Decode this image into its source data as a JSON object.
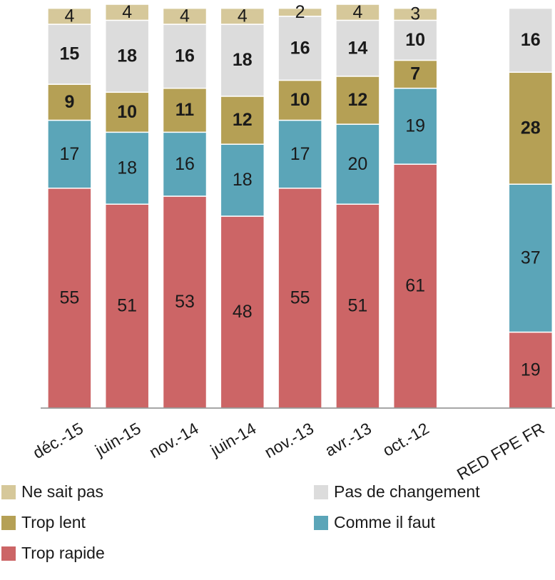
{
  "chart_data": {
    "type": "stacked_bar",
    "categories": [
      "déc.-15",
      "juin-15",
      "nov.-14",
      "juin-14",
      "nov.-13",
      "avr.-13",
      "oct.-12",
      null,
      "RED FPE FR"
    ],
    "series": [
      {
        "name": "Trop rapide",
        "color": "#cc6566",
        "values": [
          55,
          51,
          53,
          48,
          55,
          51,
          61,
          null,
          19
        ]
      },
      {
        "name": "Comme il faut",
        "color": "#5ba5b8",
        "values": [
          17,
          18,
          16,
          18,
          17,
          20,
          19,
          null,
          37
        ]
      },
      {
        "name": "Trop lent",
        "color": "#b5a055",
        "values": [
          9,
          10,
          11,
          12,
          10,
          12,
          7,
          null,
          28
        ]
      },
      {
        "name": "Pas de changement",
        "color": "#dcdcdc",
        "values": [
          15,
          18,
          16,
          18,
          16,
          14,
          10,
          null,
          16
        ]
      },
      {
        "name": "Ne sait pas",
        "color": "#d6c89a",
        "values": [
          4,
          4,
          4,
          4,
          2,
          4,
          3,
          null,
          null
        ]
      }
    ]
  }
}
